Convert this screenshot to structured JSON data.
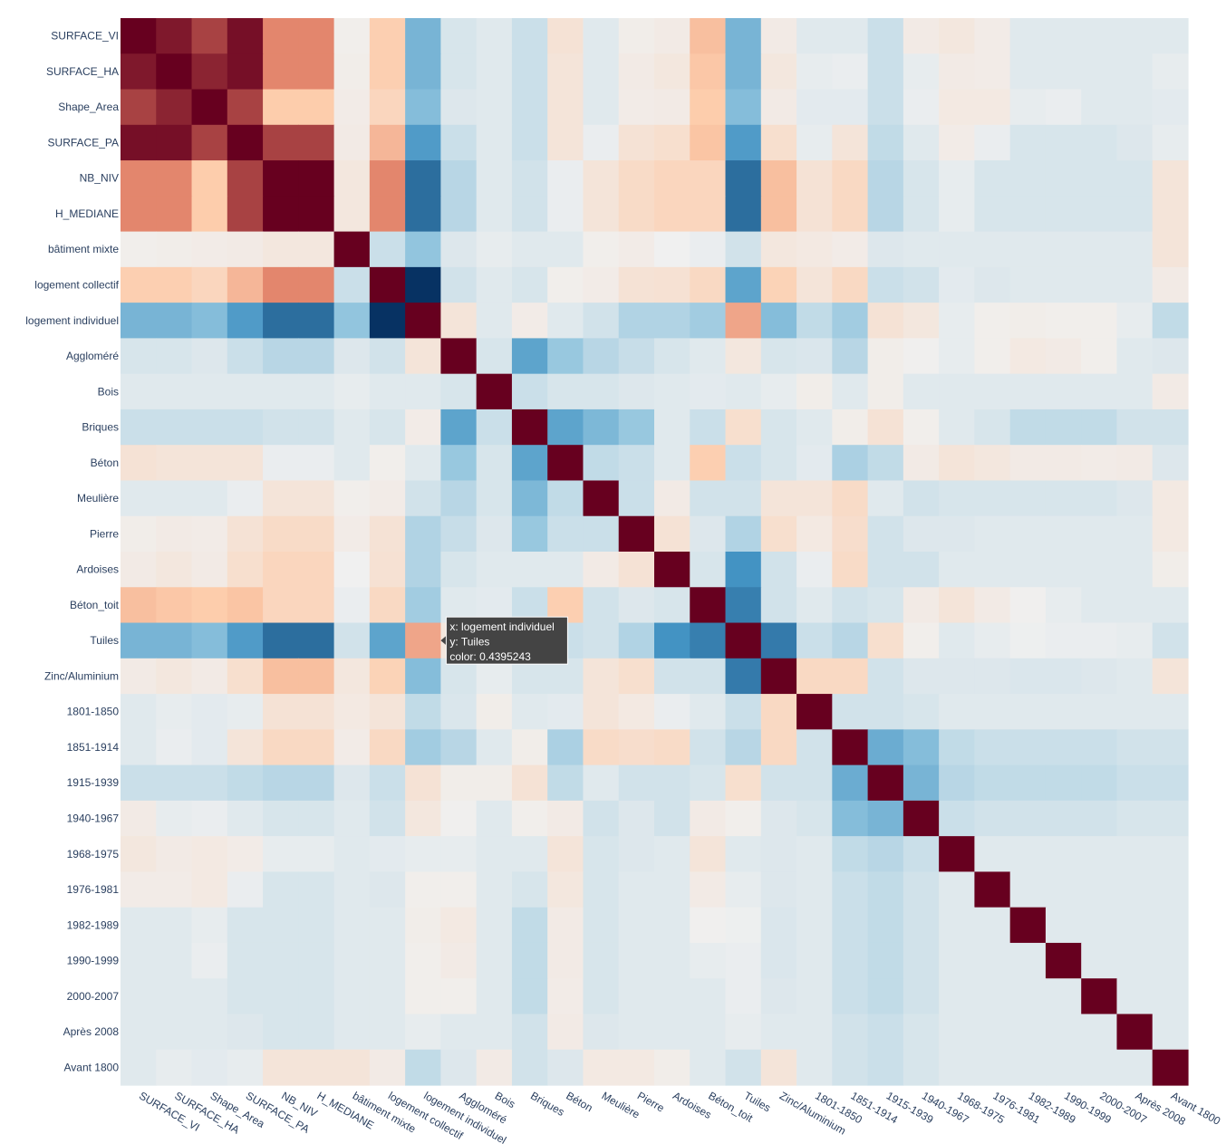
{
  "chart_data": {
    "type": "heatmap",
    "title": "",
    "xlabel": "",
    "ylabel": "",
    "colorscale": "RdBu (reversed)",
    "zrange": [
      -1,
      1
    ],
    "labels": [
      "SURFACE_VI",
      "SURFACE_HA",
      "Shape_Area",
      "SURFACE_PA",
      "NB_NIV",
      "H_MEDIANE",
      "bâtiment mixte",
      "logement collectif",
      "logement individuel",
      "Aggloméré",
      "Bois",
      "Briques",
      "Béton",
      "Meulière",
      "Pierre",
      "Ardoises",
      "Béton_toit",
      "Tuiles",
      "Zinc/Aluminium",
      "1801-1850",
      "1851-1914",
      "1915-1939",
      "1940-1967",
      "1968-1975",
      "1976-1981",
      "1982-1989",
      "1990-1999",
      "2000-2007",
      "Après 2008",
      "Avant 1800"
    ],
    "z": [
      [
        1.0,
        0.92,
        0.78,
        0.95,
        0.55,
        0.55,
        0.02,
        0.28,
        -0.4,
        -0.08,
        -0.05,
        -0.12,
        0.12,
        -0.05,
        0.03,
        0.05,
        0.35,
        -0.4,
        0.05,
        -0.05,
        -0.05,
        -0.12,
        0.05,
        0.08,
        0.04,
        -0.05,
        -0.05,
        -0.05,
        -0.05,
        -0.05
      ],
      [
        0.92,
        1.0,
        0.88,
        0.95,
        0.55,
        0.55,
        0.03,
        0.28,
        -0.4,
        -0.08,
        -0.05,
        -0.12,
        0.1,
        -0.05,
        0.05,
        0.08,
        0.32,
        -0.4,
        0.08,
        -0.03,
        -0.02,
        -0.12,
        -0.03,
        0.05,
        0.04,
        -0.05,
        -0.05,
        -0.05,
        -0.05,
        -0.03
      ],
      [
        0.78,
        0.88,
        1.0,
        0.78,
        0.3,
        0.3,
        0.04,
        0.22,
        -0.35,
        -0.06,
        -0.05,
        -0.12,
        0.1,
        -0.05,
        0.04,
        0.05,
        0.3,
        -0.35,
        0.05,
        -0.04,
        -0.04,
        -0.12,
        -0.02,
        0.06,
        0.06,
        -0.03,
        -0.02,
        -0.05,
        -0.05,
        -0.04
      ],
      [
        0.95,
        0.95,
        0.78,
        1.0,
        0.78,
        0.78,
        0.05,
        0.38,
        -0.55,
        -0.12,
        -0.05,
        -0.12,
        0.1,
        -0.02,
        0.12,
        0.15,
        0.33,
        -0.55,
        0.15,
        -0.03,
        0.1,
        -0.15,
        -0.05,
        0.04,
        -0.02,
        -0.08,
        -0.08,
        -0.08,
        -0.06,
        -0.03
      ],
      [
        0.55,
        0.55,
        0.3,
        0.78,
        1.0,
        1.0,
        0.08,
        0.55,
        -0.75,
        -0.18,
        -0.05,
        -0.1,
        -0.02,
        0.1,
        0.18,
        0.22,
        0.22,
        -0.75,
        0.35,
        0.12,
        0.2,
        -0.18,
        -0.08,
        -0.03,
        -0.08,
        -0.08,
        -0.08,
        -0.08,
        -0.08,
        0.1
      ],
      [
        0.55,
        0.55,
        0.3,
        0.78,
        1.0,
        1.0,
        0.08,
        0.55,
        -0.75,
        -0.18,
        -0.05,
        -0.1,
        -0.02,
        0.1,
        0.18,
        0.22,
        0.22,
        -0.75,
        0.35,
        0.12,
        0.2,
        -0.18,
        -0.08,
        -0.03,
        -0.08,
        -0.08,
        -0.08,
        -0.08,
        -0.08,
        0.1
      ],
      [
        0.02,
        0.03,
        0.04,
        0.05,
        0.08,
        0.08,
        1.0,
        -0.12,
        -0.3,
        -0.06,
        -0.03,
        -0.05,
        -0.05,
        0.02,
        0.04,
        0.0,
        -0.02,
        -0.1,
        0.08,
        0.06,
        0.04,
        -0.06,
        -0.05,
        -0.05,
        -0.05,
        -0.05,
        -0.05,
        -0.05,
        -0.05,
        0.1
      ],
      [
        0.28,
        0.28,
        0.22,
        0.38,
        0.55,
        0.55,
        -0.12,
        1.0,
        -0.99,
        -0.1,
        -0.05,
        -0.08,
        0.02,
        0.04,
        0.12,
        0.13,
        0.2,
        -0.5,
        0.25,
        0.1,
        0.2,
        -0.12,
        -0.1,
        -0.04,
        -0.06,
        -0.05,
        -0.05,
        -0.05,
        -0.05,
        0.05
      ],
      [
        -0.4,
        -0.4,
        -0.35,
        -0.55,
        -0.75,
        -0.75,
        -0.3,
        -0.99,
        1.0,
        0.1,
        -0.05,
        0.04,
        -0.05,
        -0.1,
        -0.2,
        -0.2,
        -0.25,
        0.44,
        -0.35,
        -0.15,
        -0.25,
        0.12,
        0.08,
        -0.03,
        0.02,
        0.03,
        0.02,
        0.02,
        -0.03,
        -0.15
      ],
      [
        -0.08,
        -0.08,
        -0.06,
        -0.12,
        -0.18,
        -0.18,
        -0.06,
        -0.1,
        0.1,
        1.0,
        -0.08,
        -0.5,
        -0.28,
        -0.18,
        -0.13,
        -0.08,
        -0.05,
        0.08,
        -0.08,
        -0.07,
        -0.18,
        0.03,
        0.01,
        -0.03,
        0.02,
        0.06,
        0.05,
        0.02,
        -0.05,
        -0.06
      ],
      [
        -0.05,
        -0.05,
        -0.05,
        -0.05,
        -0.05,
        -0.05,
        -0.03,
        -0.05,
        -0.05,
        -0.08,
        1.0,
        -0.12,
        -0.08,
        -0.08,
        -0.06,
        -0.05,
        -0.04,
        -0.05,
        -0.03,
        0.03,
        -0.05,
        0.03,
        -0.05,
        -0.05,
        -0.05,
        -0.05,
        -0.05,
        -0.05,
        -0.05,
        0.05
      ],
      [
        -0.12,
        -0.12,
        -0.12,
        -0.12,
        -0.1,
        -0.1,
        -0.05,
        -0.08,
        0.04,
        -0.5,
        -0.12,
        1.0,
        -0.5,
        -0.38,
        -0.28,
        -0.05,
        -0.12,
        0.15,
        -0.08,
        -0.05,
        0.03,
        0.12,
        0.02,
        -0.05,
        -0.08,
        -0.15,
        -0.15,
        -0.15,
        -0.1,
        -0.1
      ],
      [
        0.12,
        0.1,
        0.1,
        0.1,
        -0.02,
        -0.02,
        -0.05,
        0.02,
        -0.05,
        -0.28,
        -0.08,
        -0.5,
        1.0,
        -0.15,
        -0.12,
        -0.05,
        0.28,
        -0.12,
        -0.08,
        -0.04,
        -0.22,
        -0.15,
        0.05,
        0.1,
        0.08,
        0.05,
        0.05,
        0.04,
        0.05,
        -0.06
      ],
      [
        -0.05,
        -0.05,
        -0.05,
        -0.02,
        0.1,
        0.1,
        0.02,
        0.04,
        -0.1,
        -0.18,
        -0.08,
        -0.38,
        -0.15,
        1.0,
        -0.12,
        0.05,
        -0.1,
        -0.1,
        0.1,
        0.1,
        0.18,
        -0.05,
        -0.1,
        -0.08,
        -0.08,
        -0.08,
        -0.08,
        -0.08,
        -0.06,
        0.06
      ],
      [
        0.03,
        0.05,
        0.04,
        0.12,
        0.18,
        0.18,
        0.04,
        0.12,
        -0.2,
        -0.13,
        -0.06,
        -0.28,
        -0.12,
        -0.12,
        1.0,
        0.12,
        -0.06,
        -0.2,
        0.15,
        0.06,
        0.16,
        -0.1,
        -0.06,
        -0.06,
        -0.05,
        -0.05,
        -0.05,
        -0.05,
        -0.05,
        0.06
      ],
      [
        0.05,
        0.08,
        0.05,
        0.15,
        0.22,
        0.22,
        0.0,
        0.13,
        -0.2,
        -0.08,
        -0.05,
        -0.05,
        -0.05,
        0.05,
        0.12,
        1.0,
        -0.08,
        -0.6,
        -0.1,
        -0.02,
        0.18,
        -0.1,
        -0.1,
        -0.05,
        -0.05,
        -0.05,
        -0.05,
        -0.05,
        -0.05,
        0.03
      ],
      [
        0.35,
        0.32,
        0.3,
        0.33,
        0.22,
        0.22,
        -0.02,
        0.2,
        -0.25,
        -0.05,
        -0.04,
        -0.12,
        0.28,
        -0.1,
        -0.06,
        -0.08,
        1.0,
        -0.68,
        -0.1,
        -0.05,
        -0.1,
        -0.08,
        0.05,
        0.1,
        0.05,
        0.01,
        -0.03,
        -0.05,
        -0.05,
        -0.05
      ],
      [
        -0.4,
        -0.4,
        -0.35,
        -0.55,
        -0.75,
        -0.75,
        -0.1,
        -0.5,
        0.44,
        0.08,
        -0.05,
        0.15,
        -0.12,
        -0.1,
        -0.2,
        -0.6,
        -0.68,
        1.0,
        -0.7,
        -0.12,
        -0.18,
        0.15,
        0.02,
        -0.05,
        -0.03,
        -0.01,
        -0.02,
        -0.02,
        -0.03,
        -0.1
      ],
      [
        0.05,
        0.08,
        0.05,
        0.15,
        0.35,
        0.35,
        0.08,
        0.25,
        -0.35,
        -0.08,
        -0.03,
        -0.08,
        -0.08,
        0.1,
        0.15,
        -0.1,
        -0.1,
        -0.7,
        1.0,
        0.2,
        0.2,
        -0.1,
        -0.06,
        -0.06,
        -0.06,
        -0.07,
        -0.07,
        -0.06,
        -0.05,
        0.1
      ],
      [
        -0.05,
        -0.03,
        -0.04,
        -0.03,
        0.12,
        0.12,
        0.06,
        0.1,
        -0.15,
        -0.07,
        0.03,
        -0.05,
        -0.04,
        0.1,
        0.06,
        -0.02,
        -0.05,
        -0.12,
        0.2,
        1.0,
        -0.1,
        -0.1,
        -0.08,
        -0.05,
        -0.05,
        -0.05,
        -0.05,
        -0.05,
        -0.05,
        -0.05
      ],
      [
        -0.05,
        -0.02,
        -0.04,
        0.1,
        0.2,
        0.2,
        0.04,
        0.2,
        -0.25,
        -0.18,
        -0.05,
        0.03,
        -0.22,
        0.18,
        0.16,
        0.18,
        -0.1,
        -0.18,
        0.2,
        -0.1,
        1.0,
        -0.45,
        -0.35,
        -0.15,
        -0.12,
        -0.12,
        -0.12,
        -0.12,
        -0.1,
        -0.1
      ],
      [
        -0.12,
        -0.12,
        -0.12,
        -0.15,
        -0.18,
        -0.18,
        -0.06,
        -0.12,
        0.12,
        0.03,
        0.03,
        0.12,
        -0.15,
        -0.05,
        -0.1,
        -0.1,
        -0.08,
        0.15,
        -0.1,
        -0.1,
        -0.45,
        1.0,
        -0.4,
        -0.18,
        -0.15,
        -0.15,
        -0.15,
        -0.15,
        -0.12,
        -0.12
      ],
      [
        0.05,
        -0.03,
        -0.02,
        -0.05,
        -0.08,
        -0.08,
        -0.05,
        -0.1,
        0.08,
        0.01,
        -0.05,
        0.02,
        0.05,
        -0.1,
        -0.06,
        -0.1,
        0.05,
        0.02,
        -0.06,
        -0.08,
        -0.35,
        -0.4,
        1.0,
        -0.12,
        -0.1,
        -0.1,
        -0.1,
        -0.1,
        -0.08,
        -0.08
      ],
      [
        0.08,
        0.05,
        0.06,
        0.04,
        -0.03,
        -0.03,
        -0.05,
        -0.04,
        -0.03,
        -0.03,
        -0.05,
        -0.05,
        0.1,
        -0.08,
        -0.06,
        -0.05,
        0.1,
        -0.05,
        -0.06,
        -0.05,
        -0.15,
        -0.18,
        -0.12,
        1.0,
        -0.05,
        -0.05,
        -0.05,
        -0.05,
        -0.05,
        -0.05
      ],
      [
        0.04,
        0.04,
        0.06,
        -0.02,
        -0.08,
        -0.08,
        -0.05,
        -0.06,
        0.02,
        0.02,
        -0.05,
        -0.08,
        0.08,
        -0.08,
        -0.05,
        -0.05,
        0.05,
        -0.03,
        -0.06,
        -0.05,
        -0.12,
        -0.15,
        -0.1,
        -0.05,
        1.0,
        -0.05,
        -0.05,
        -0.05,
        -0.05,
        -0.05
      ],
      [
        -0.05,
        -0.05,
        -0.03,
        -0.08,
        -0.08,
        -0.08,
        -0.05,
        -0.05,
        0.03,
        0.06,
        -0.05,
        -0.15,
        0.05,
        -0.08,
        -0.05,
        -0.05,
        0.01,
        -0.01,
        -0.07,
        -0.05,
        -0.12,
        -0.15,
        -0.1,
        -0.05,
        -0.05,
        1.0,
        -0.05,
        -0.05,
        -0.05,
        -0.05
      ],
      [
        -0.05,
        -0.05,
        -0.02,
        -0.08,
        -0.08,
        -0.08,
        -0.05,
        -0.05,
        0.02,
        0.05,
        -0.05,
        -0.15,
        0.05,
        -0.08,
        -0.05,
        -0.05,
        -0.03,
        -0.02,
        -0.07,
        -0.05,
        -0.12,
        -0.15,
        -0.1,
        -0.05,
        -0.05,
        -0.05,
        1.0,
        -0.05,
        -0.05,
        -0.05
      ],
      [
        -0.05,
        -0.05,
        -0.05,
        -0.08,
        -0.08,
        -0.08,
        -0.05,
        -0.05,
        0.02,
        0.02,
        -0.05,
        -0.15,
        0.04,
        -0.08,
        -0.05,
        -0.05,
        -0.05,
        -0.02,
        -0.06,
        -0.05,
        -0.12,
        -0.15,
        -0.1,
        -0.05,
        -0.05,
        -0.05,
        -0.05,
        1.0,
        -0.05,
        -0.05
      ],
      [
        -0.05,
        -0.05,
        -0.05,
        -0.06,
        -0.08,
        -0.08,
        -0.05,
        -0.05,
        -0.03,
        -0.05,
        -0.05,
        -0.1,
        0.05,
        -0.06,
        -0.05,
        -0.05,
        -0.05,
        -0.03,
        -0.05,
        -0.05,
        -0.1,
        -0.12,
        -0.08,
        -0.05,
        -0.05,
        -0.05,
        -0.05,
        -0.05,
        1.0,
        -0.05
      ],
      [
        -0.05,
        -0.03,
        -0.04,
        -0.03,
        0.1,
        0.1,
        0.1,
        0.05,
        -0.15,
        -0.06,
        0.05,
        -0.1,
        -0.06,
        0.06,
        0.06,
        0.03,
        -0.05,
        -0.1,
        0.1,
        -0.05,
        -0.1,
        -0.12,
        -0.08,
        -0.05,
        -0.05,
        -0.05,
        -0.05,
        -0.05,
        -0.05,
        1.0
      ]
    ]
  },
  "tooltip": {
    "x_line": "x: logement individuel",
    "y_line": "y: Tuiles",
    "color_line": "color: 0.4395243",
    "col": 8,
    "row": 17
  }
}
